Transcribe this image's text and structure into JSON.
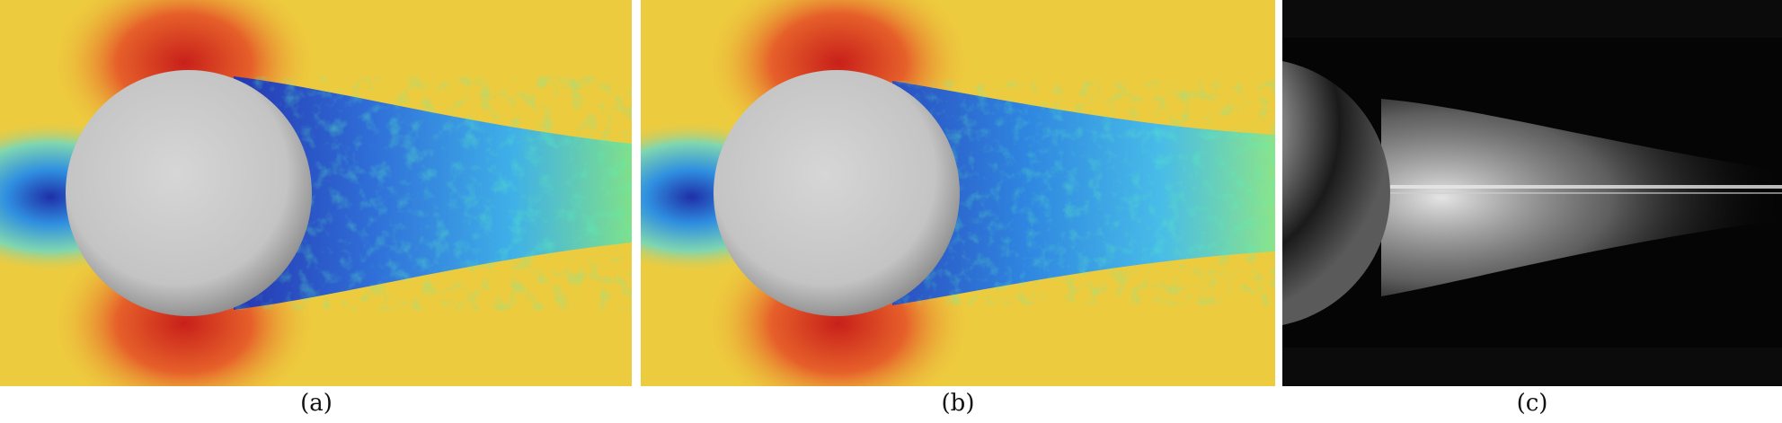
{
  "figure": {
    "panels": [
      {
        "id": "a",
        "caption": "(a)",
        "kind": "simulation-colormap"
      },
      {
        "id": "b",
        "caption": "(b)",
        "kind": "simulation-colormap"
      },
      {
        "id": "c",
        "caption": "(c)",
        "kind": "experimental-photograph"
      }
    ],
    "colors": {
      "freestream": "#edcb3e",
      "stagnation_low": "#1f2fa8",
      "acceleration_high": "#d4301a",
      "wake_mid": "#2fa6e6",
      "wake_low": "#2536b0",
      "wake_green": "#7fe08a",
      "sphere": "#c9c9c9",
      "photo_background": "#0b0b0b"
    }
  }
}
